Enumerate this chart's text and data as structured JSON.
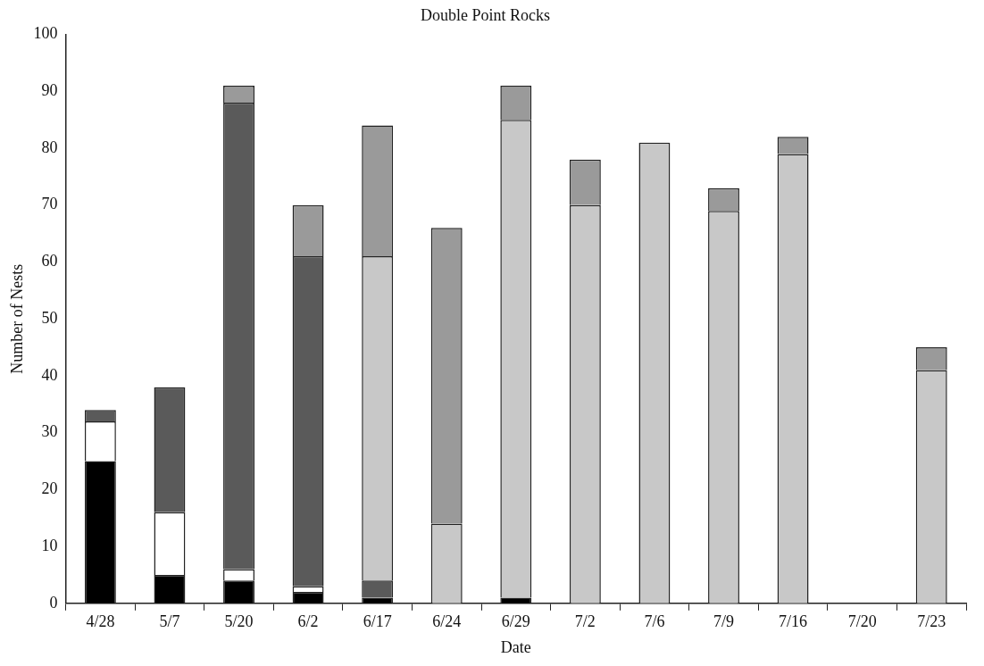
{
  "chart_data": {
    "type": "bar",
    "title": "Double Point Rocks",
    "xlabel": "Date",
    "ylabel": "Number of Nests",
    "stacked": true,
    "categories": [
      "4/28",
      "5/7",
      "5/20",
      "6/2",
      "6/17",
      "6/24",
      "6/29",
      "7/2",
      "7/6",
      "7/9",
      "7/16",
      "7/20",
      "7/23"
    ],
    "series": [
      {
        "color": "#000000",
        "values": [
          25,
          5,
          4,
          2,
          1,
          0,
          1,
          0,
          0,
          0,
          0,
          0,
          0
        ]
      },
      {
        "color": "#ffffff",
        "values": [
          7,
          11,
          2,
          1,
          0,
          0,
          0,
          0,
          0,
          0,
          0,
          0,
          0
        ]
      },
      {
        "color": "#5a5a5a",
        "values": [
          2,
          22,
          82,
          58,
          3,
          0,
          0,
          0,
          0,
          0,
          0,
          0,
          0
        ]
      },
      {
        "color": "#c8c8c8",
        "values": [
          0,
          0,
          0,
          0,
          57,
          14,
          84,
          70,
          81,
          69,
          79,
          0,
          41
        ]
      },
      {
        "color": "#9a9a9a",
        "values": [
          0,
          0,
          3,
          9,
          23,
          52,
          6,
          8,
          0,
          4,
          3,
          0,
          4
        ]
      }
    ],
    "ylim": [
      0,
      100
    ],
    "yticks": [
      0,
      10,
      20,
      30,
      40,
      50,
      60,
      70,
      80,
      90,
      100
    ],
    "grid": false,
    "legend": false
  }
}
